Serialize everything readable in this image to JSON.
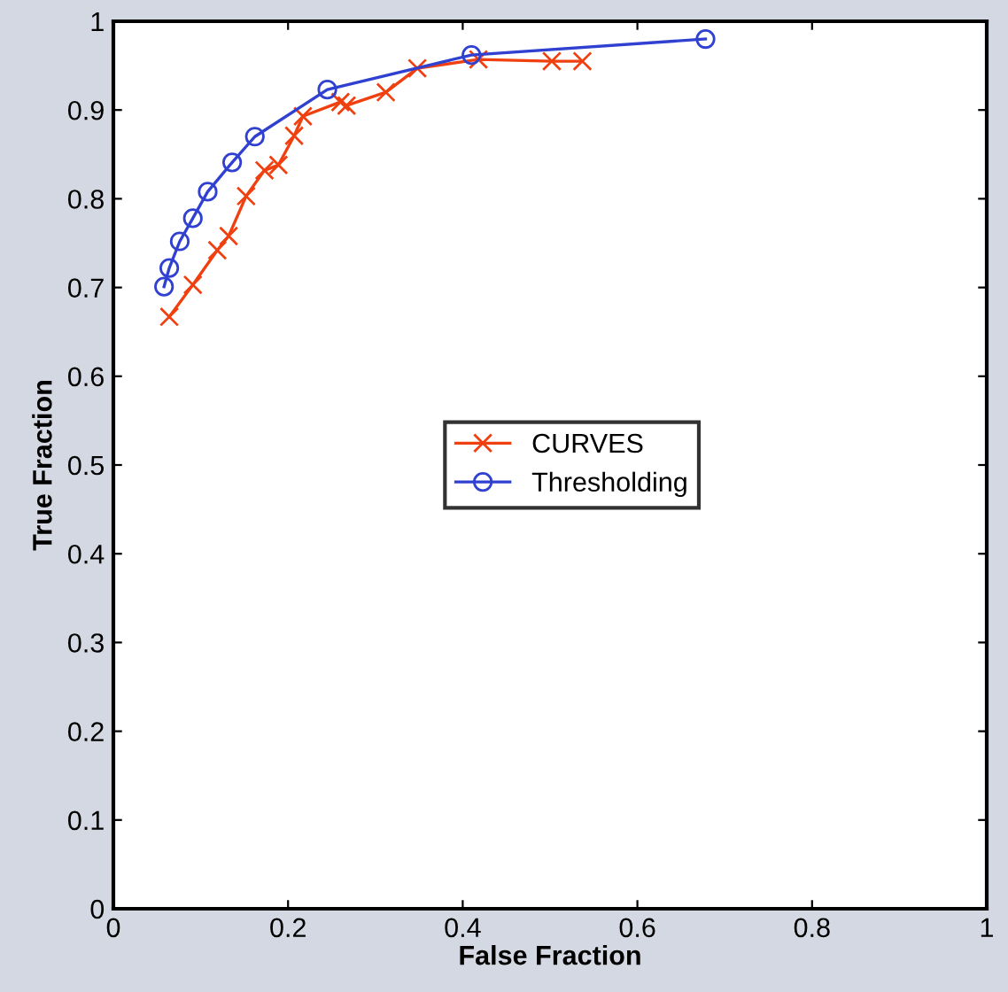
{
  "chart_data": {
    "type": "line",
    "xlabel": "False Fraction",
    "ylabel": "True Fraction",
    "xlim": [
      0,
      1
    ],
    "ylim": [
      0,
      1
    ],
    "xticks": [
      0,
      0.2,
      0.4,
      0.6,
      0.8,
      1
    ],
    "yticks": [
      0,
      0.1,
      0.2,
      0.3,
      0.4,
      0.5,
      0.6,
      0.7,
      0.8,
      0.9,
      1
    ],
    "grid": false,
    "legend": "center",
    "series": [
      {
        "name": "CURVES",
        "color": "#f04010",
        "marker": "cross",
        "x": [
          0.064,
          0.091,
          0.119,
          0.132,
          0.152,
          0.173,
          0.189,
          0.207,
          0.217,
          0.26,
          0.267,
          0.312,
          0.348,
          0.418,
          0.502,
          0.537
        ],
        "values": [
          0.667,
          0.703,
          0.742,
          0.758,
          0.803,
          0.832,
          0.838,
          0.871,
          0.893,
          0.909,
          0.905,
          0.92,
          0.947,
          0.957,
          0.955,
          0.955
        ]
      },
      {
        "name": "Thresholding",
        "color": "#3040d0",
        "marker": "circle",
        "x": [
          0.058,
          0.064,
          0.076,
          0.091,
          0.108,
          0.136,
          0.162,
          0.245,
          0.41,
          0.678
        ],
        "values": [
          0.701,
          0.722,
          0.752,
          0.778,
          0.808,
          0.841,
          0.87,
          0.923,
          0.962,
          0.98
        ]
      }
    ]
  }
}
